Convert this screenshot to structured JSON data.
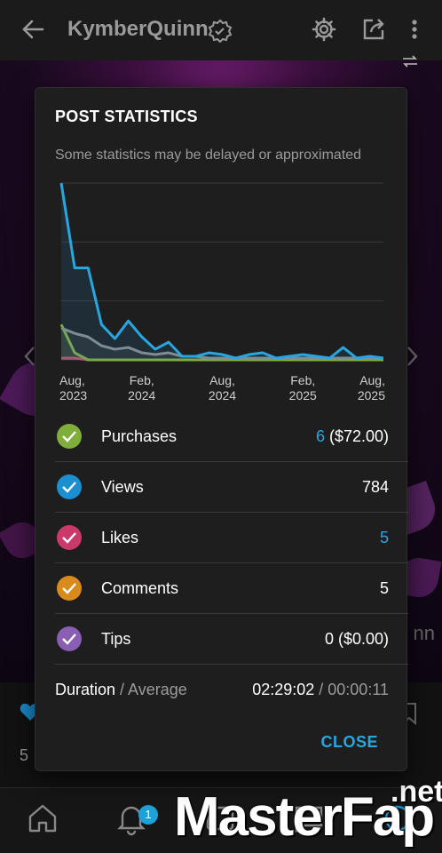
{
  "header": {
    "title": "KymberQuinn"
  },
  "background": {
    "likes_count": "5",
    "name_fragment": "nn"
  },
  "nav": {
    "notification_badge": "1"
  },
  "watermark": {
    "text": "MasterFap",
    "suffix": ".net"
  },
  "modal": {
    "title": "POST STATISTICS",
    "note": "Some statistics may be delayed or approximated",
    "close_label": "CLOSE",
    "stats": [
      {
        "label": "Purchases",
        "value_main": "6",
        "value_rest": " ($72.00)",
        "color": "#7fae3a"
      },
      {
        "label": "Views",
        "value_main": "",
        "value_rest": "784",
        "color": "#1b8fd0"
      },
      {
        "label": "Likes",
        "value_main": "5",
        "value_rest": "",
        "color": "#c93a6a"
      },
      {
        "label": "Comments",
        "value_main": "",
        "value_rest": "5",
        "color": "#d98a1c"
      },
      {
        "label": "Tips",
        "value_main": "",
        "value_rest": "0 ($0.00)",
        "color": "#8a5fb3"
      }
    ],
    "duration": {
      "label": "Duration",
      "sublabel": " / Average",
      "total": "02:29:02",
      "average": " / 00:00:11"
    }
  },
  "chart_data": {
    "type": "line",
    "x_ticks": [
      [
        "Aug,",
        "2023"
      ],
      [
        "Feb,",
        "2024"
      ],
      [
        "Aug,",
        "2024"
      ],
      [
        "Feb,",
        "2025"
      ],
      [
        "Aug,",
        "2025"
      ]
    ],
    "x_tick_index": [
      0,
      6,
      12,
      18,
      24
    ],
    "grid": true,
    "ylim": [
      0,
      100
    ],
    "series": [
      {
        "color": "#27a7e0",
        "values": [
          100,
          52,
          52,
          20,
          12,
          22,
          13,
          6,
          10,
          2,
          2,
          4,
          3,
          1,
          3,
          4,
          1,
          2,
          3,
          2,
          1,
          7,
          1,
          2,
          1
        ]
      },
      {
        "color": "#8a8a8a",
        "values": [
          18,
          15,
          13,
          8,
          6,
          7,
          4,
          3,
          4,
          2,
          2,
          1,
          1,
          1,
          1,
          1,
          1,
          1,
          1,
          1,
          1,
          1,
          1,
          1,
          1
        ]
      },
      {
        "color": "#7fae3a",
        "values": [
          20,
          4,
          0,
          0,
          0,
          0,
          0,
          0,
          0,
          0,
          0,
          0,
          0,
          0,
          0,
          0,
          0,
          0,
          0,
          0,
          0,
          0,
          0,
          0,
          0
        ]
      },
      {
        "color": "#c93a6a",
        "values": [
          1,
          1,
          0,
          0,
          0,
          0,
          0,
          0,
          0,
          0,
          0,
          0,
          0,
          0,
          0,
          0,
          0,
          0,
          0,
          0,
          0,
          0,
          0,
          0,
          0
        ]
      }
    ]
  }
}
